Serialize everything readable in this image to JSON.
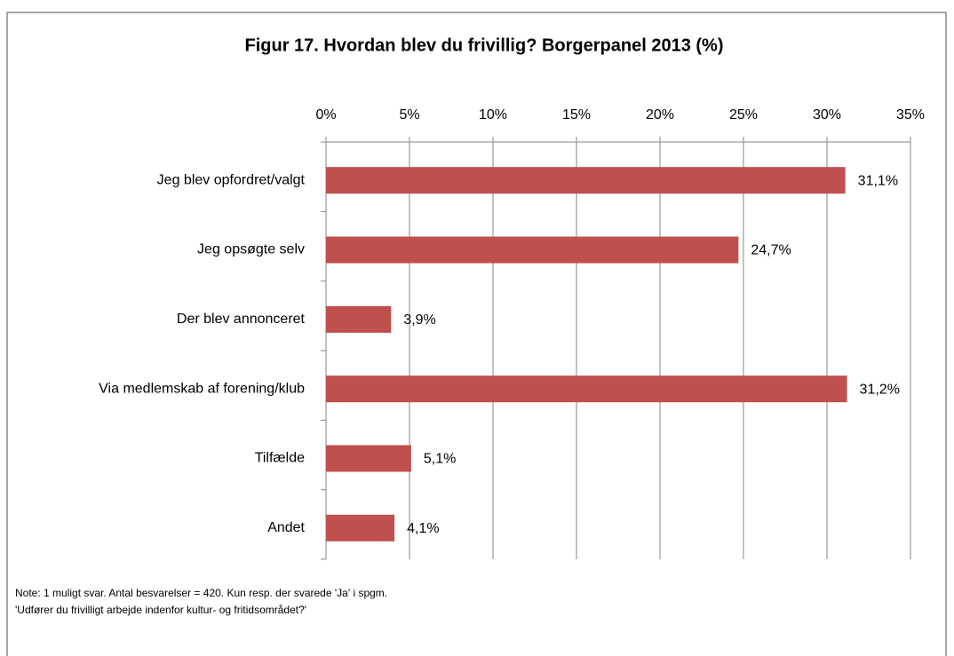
{
  "chart_data": {
    "type": "bar",
    "orientation": "horizontal",
    "title": "Figur 17. Hvordan blev du frivillig? Borgerpanel 2013 (%)",
    "categories": [
      "Jeg blev opfordret/valgt",
      "Jeg opsøgte selv",
      "Der blev annonceret",
      "Via medlemskab af forening/klub",
      "Tilfælde",
      "Andet"
    ],
    "values": [
      31.1,
      24.7,
      3.9,
      31.2,
      5.1,
      4.1
    ],
    "value_labels": [
      "31,1%",
      "24,7%",
      "3,9%",
      "31,2%",
      "5,1%",
      "4,1%"
    ],
    "color": "#c0504d",
    "xlim": [
      0,
      35
    ],
    "xticks": [
      {
        "value": 0,
        "label": "0%"
      },
      {
        "value": 5,
        "label": "5%"
      },
      {
        "value": 10,
        "label": "10%"
      },
      {
        "value": 15,
        "label": "15%"
      },
      {
        "value": 20,
        "label": "20%"
      },
      {
        "value": 25,
        "label": "25%"
      },
      {
        "value": 30,
        "label": "30%"
      },
      {
        "value": 35,
        "label": "35%"
      }
    ],
    "grid": true,
    "notes": [
      "Note: 1 muligt svar. Antal besvarelser = 420. Kun resp. der  svarede 'Ja' i spgm.",
      "'Udfører du frivilligt arbejde indenfor kultur- og fritidsområdet?'"
    ]
  }
}
